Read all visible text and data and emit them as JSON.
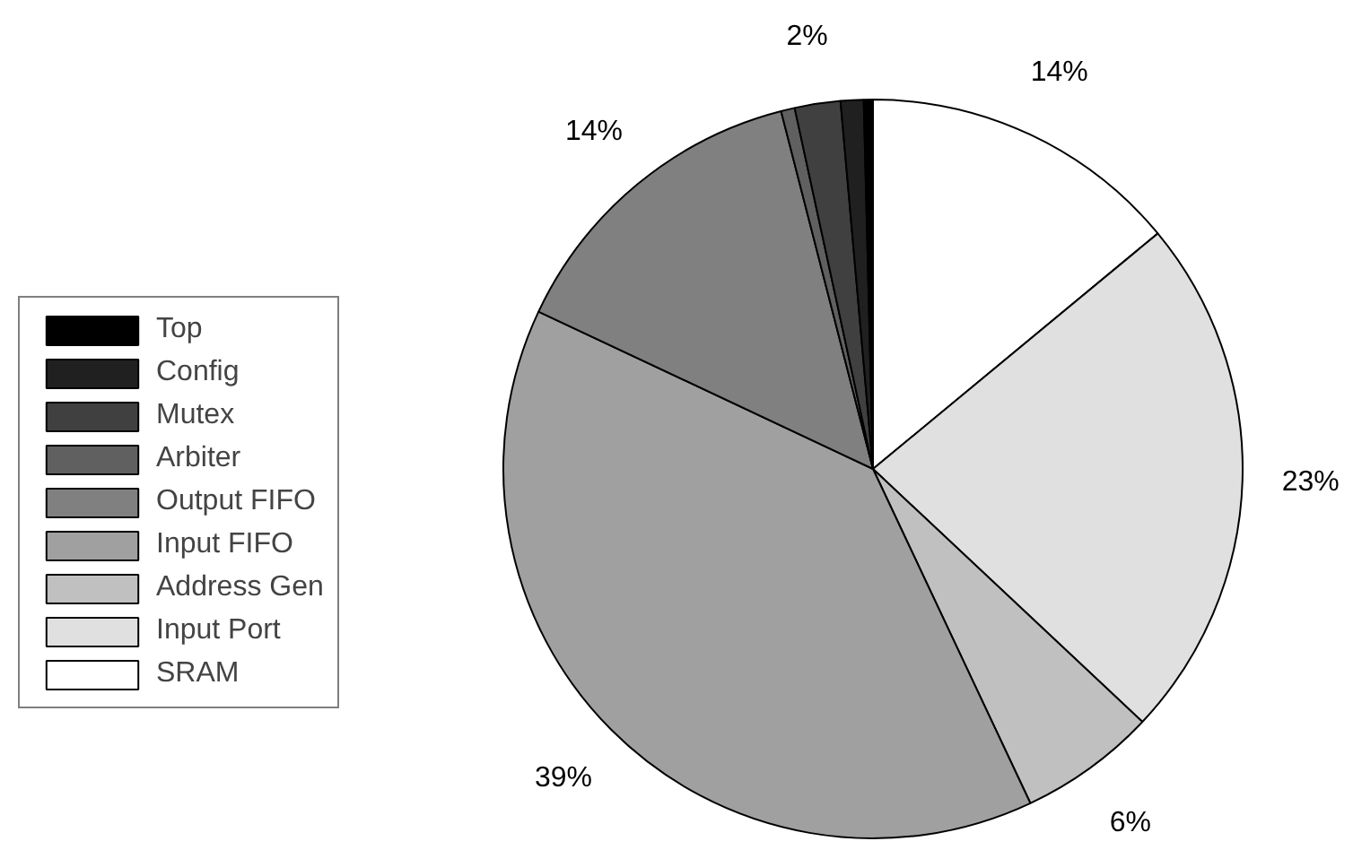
{
  "chart_data": {
    "type": "pie",
    "categories": [
      "SRAM",
      "Input Port",
      "Address Gen",
      "Input FIFO",
      "Output FIFO",
      "Arbiter",
      "Mutex",
      "Config",
      "Top"
    ],
    "values": [
      14,
      23,
      6,
      39,
      14,
      0.6,
      2,
      1,
      0.4
    ],
    "colors": [
      "#ffffff",
      "#e0e0e0",
      "#c0c0c0",
      "#a0a0a0",
      "#808080",
      "#606060",
      "#404040",
      "#202020",
      "#000000"
    ],
    "value_labels": [
      "14%",
      "23%",
      "6%",
      "39%",
      "14%",
      null,
      "2%",
      null,
      null
    ],
    "legend": "left"
  }
}
